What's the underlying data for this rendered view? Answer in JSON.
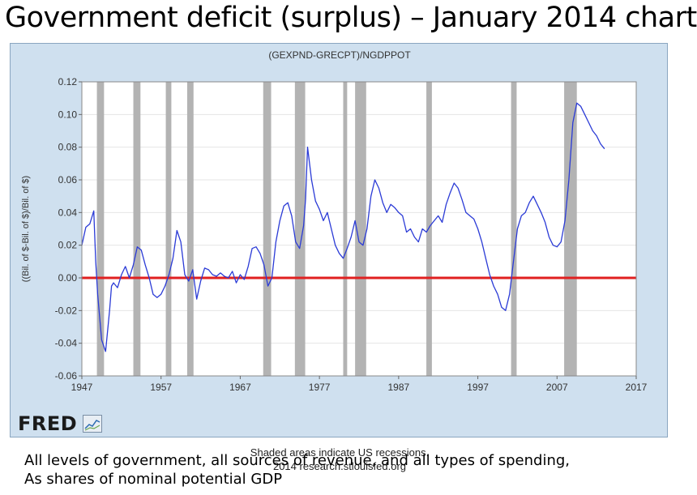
{
  "page": {
    "title": "Government deficit (surplus) – January 2014 chart",
    "caption_line1": "All levels of government, all sources of revenue, and all types of spending,",
    "caption_line2": "As shares of nominal potential GDP"
  },
  "footer": {
    "recession_note": "Shaded areas indicate US recessions.",
    "source": "2014 research.stlouisfed.org",
    "logo": "FRED"
  },
  "colors": {
    "series": "#2b3bd6",
    "zero_line": "#e02020",
    "recession": "#b3b3b3",
    "panel": "#cfe0ef"
  },
  "chart_data": {
    "type": "line",
    "title": "(GEXPND-GRECPT)/NGDPPOT",
    "ylabel": "((Bil. of $-Bil. of $)/Bil. of $)",
    "xlabel": "",
    "xlim": [
      1947,
      2017
    ],
    "ylim": [
      -0.06,
      0.12
    ],
    "x_ticks": [
      "1947",
      "1957",
      "1967",
      "1977",
      "1987",
      "1997",
      "2007",
      "2017"
    ],
    "y_ticks": [
      "0.12",
      "0.10",
      "0.08",
      "0.06",
      "0.04",
      "0.02",
      "0.00",
      "-0.02",
      "-0.04",
      "-0.06"
    ],
    "reference_line": 0,
    "recessions": [
      [
        1948.9,
        1949.8
      ],
      [
        1953.5,
        1954.4
      ],
      [
        1957.6,
        1958.3
      ],
      [
        1960.3,
        1961.1
      ],
      [
        1969.9,
        1970.9
      ],
      [
        1973.9,
        1975.2
      ],
      [
        1980.0,
        1980.5
      ],
      [
        1981.5,
        1982.9
      ],
      [
        1990.5,
        1991.2
      ],
      [
        2001.2,
        2001.9
      ],
      [
        2007.9,
        2009.5
      ]
    ],
    "series": [
      {
        "name": "(GEXPND-GRECPT)/NGDPPOT",
        "x": [
          1947.0,
          1947.5,
          1948.0,
          1948.5,
          1948.75,
          1949.0,
          1949.5,
          1950.0,
          1950.5,
          1950.75,
          1951.0,
          1951.5,
          1952.0,
          1952.5,
          1953.0,
          1953.5,
          1954.0,
          1954.5,
          1955.0,
          1955.5,
          1956.0,
          1956.5,
          1957.0,
          1957.5,
          1958.0,
          1958.5,
          1959.0,
          1959.5,
          1960.0,
          1960.5,
          1961.0,
          1961.5,
          1962.0,
          1962.5,
          1963.0,
          1963.5,
          1964.0,
          1964.5,
          1965.0,
          1965.5,
          1966.0,
          1966.5,
          1967.0,
          1967.5,
          1968.0,
          1968.5,
          1969.0,
          1969.5,
          1970.0,
          1970.5,
          1971.0,
          1971.5,
          1972.0,
          1972.5,
          1973.0,
          1973.5,
          1974.0,
          1974.5,
          1975.0,
          1975.25,
          1975.5,
          1976.0,
          1976.5,
          1977.0,
          1977.5,
          1978.0,
          1978.5,
          1979.0,
          1979.5,
          1980.0,
          1980.5,
          1981.0,
          1981.5,
          1982.0,
          1982.5,
          1983.0,
          1983.5,
          1984.0,
          1984.5,
          1985.0,
          1985.5,
          1986.0,
          1986.5,
          1987.0,
          1987.5,
          1988.0,
          1988.5,
          1989.0,
          1989.5,
          1990.0,
          1990.5,
          1991.0,
          1991.5,
          1992.0,
          1992.5,
          1993.0,
          1993.5,
          1994.0,
          1994.5,
          1995.0,
          1995.5,
          1996.0,
          1996.5,
          1997.0,
          1997.5,
          1998.0,
          1998.5,
          1999.0,
          1999.5,
          2000.0,
          2000.5,
          2001.0,
          2001.5,
          2002.0,
          2002.5,
          2003.0,
          2003.5,
          2004.0,
          2004.5,
          2005.0,
          2005.5,
          2006.0,
          2006.5,
          2007.0,
          2007.5,
          2008.0,
          2008.5,
          2009.0,
          2009.5,
          2010.0,
          2010.5,
          2011.0,
          2011.5,
          2012.0,
          2012.5,
          2013.0
        ],
        "values": [
          0.02,
          0.031,
          0.033,
          0.041,
          0.01,
          -0.01,
          -0.038,
          -0.045,
          -0.02,
          -0.005,
          -0.003,
          -0.006,
          0.002,
          0.007,
          0.0,
          0.008,
          0.019,
          0.017,
          0.008,
          0.0,
          -0.01,
          -0.012,
          -0.01,
          -0.005,
          0.002,
          0.012,
          0.029,
          0.022,
          0.002,
          -0.002,
          0.005,
          -0.013,
          -0.002,
          0.006,
          0.005,
          0.002,
          0.001,
          0.003,
          0.001,
          0.0,
          0.004,
          -0.003,
          0.002,
          -0.001,
          0.007,
          0.018,
          0.019,
          0.015,
          0.008,
          -0.005,
          0.0,
          0.022,
          0.035,
          0.044,
          0.046,
          0.038,
          0.022,
          0.018,
          0.032,
          0.048,
          0.08,
          0.06,
          0.047,
          0.042,
          0.035,
          0.04,
          0.03,
          0.02,
          0.015,
          0.012,
          0.018,
          0.025,
          0.035,
          0.022,
          0.02,
          0.03,
          0.05,
          0.06,
          0.055,
          0.046,
          0.04,
          0.045,
          0.043,
          0.04,
          0.038,
          0.028,
          0.03,
          0.025,
          0.022,
          0.03,
          0.028,
          0.032,
          0.035,
          0.038,
          0.034,
          0.045,
          0.052,
          0.058,
          0.055,
          0.048,
          0.04,
          0.038,
          0.036,
          0.03,
          0.022,
          0.012,
          0.002,
          -0.005,
          -0.01,
          -0.018,
          -0.02,
          -0.01,
          0.01,
          0.03,
          0.038,
          0.04,
          0.046,
          0.05,
          0.045,
          0.04,
          0.034,
          0.025,
          0.02,
          0.019,
          0.022,
          0.035,
          0.06,
          0.095,
          0.107,
          0.105,
          0.1,
          0.095,
          0.09,
          0.087,
          0.082,
          0.079
        ]
      }
    ]
  }
}
